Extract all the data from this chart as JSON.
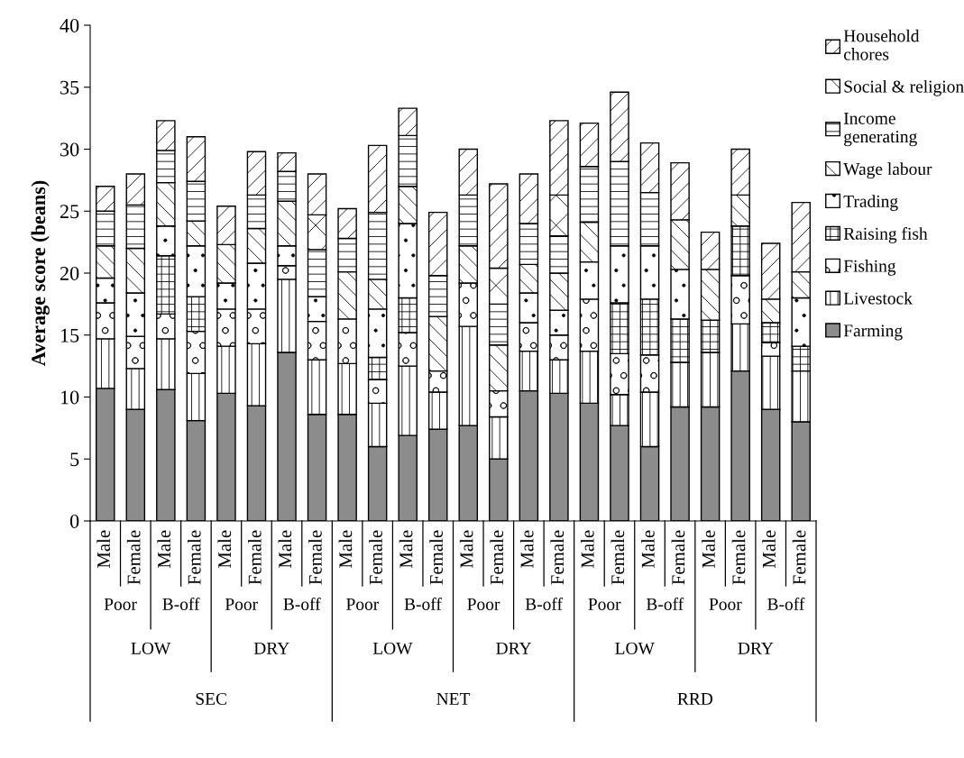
{
  "chart_data": {
    "type": "bar",
    "stacked": true,
    "ylabel": "Average score (beans)",
    "categories": [
      "Male",
      "Female",
      "Male",
      "Female",
      "Male",
      "Female",
      "Male",
      "Female",
      "Male",
      "Female",
      "Male",
      "Female",
      "Male",
      "Female",
      "Male",
      "Female",
      "Male",
      "Female",
      "Male",
      "Female",
      "Male",
      "Female",
      "Male",
      "Female"
    ],
    "annotations": [
      "Poor",
      "B-off",
      "Poor",
      "B-off",
      "Poor",
      "B-off",
      "Poor",
      "B-off",
      "Poor",
      "B-off",
      "Poor",
      "B-off",
      "LOW",
      "DRY",
      "LOW",
      "DRY",
      "LOW",
      "DRY",
      "SEC",
      "NET",
      "RRD"
    ],
    "ylim": [
      0,
      40
    ],
    "yticks": [
      0,
      5,
      10,
      15,
      20,
      25,
      30,
      35,
      40
    ],
    "grid": false,
    "legend": "top right",
    "series": [
      {
        "name": "Farming",
        "color": "#8c8c8c",
        "values": [
          10.7,
          9.0,
          10.6,
          8.1,
          10.3,
          9.3,
          13.6,
          8.6,
          8.6,
          6.0,
          6.9,
          7.4,
          7.7,
          5.0,
          10.5,
          10.3,
          9.5,
          7.7,
          6.0,
          9.2,
          9.2,
          12.1,
          9.0,
          8.0
        ]
      },
      {
        "name": "Livestock",
        "color": "#000000",
        "values": [
          4.0,
          3.3,
          4.1,
          3.8,
          3.8,
          5.0,
          5.9,
          4.4,
          4.1,
          3.5,
          5.6,
          3.0,
          8.0,
          3.4,
          3.2,
          2.7,
          4.2,
          2.5,
          4.4,
          3.6,
          4.4,
          3.8,
          4.3,
          4.1
        ]
      },
      {
        "name": "Fishing",
        "color": "#000000",
        "values": [
          2.9,
          2.6,
          2.0,
          3.4,
          3.0,
          2.8,
          1.1,
          3.1,
          3.6,
          1.9,
          2.7,
          1.7,
          3.5,
          2.1,
          2.3,
          2.0,
          4.2,
          3.3,
          3.0,
          null,
          null,
          3.9,
          1.1,
          null
        ]
      },
      {
        "name": "Raising fish",
        "color": "#000000",
        "values": [
          null,
          null,
          4.7,
          2.8,
          null,
          null,
          null,
          null,
          null,
          1.8,
          2.8,
          null,
          null,
          null,
          null,
          null,
          null,
          4.1,
          4.5,
          3.5,
          2.6,
          4.0,
          1.6,
          2.0
        ]
      },
      {
        "name": "Trading",
        "color": "#000000",
        "values": [
          2.0,
          3.5,
          2.4,
          4.1,
          2.1,
          3.7,
          1.6,
          2.0,
          null,
          3.9,
          6.0,
          null,
          null,
          null,
          2.4,
          2.0,
          3.0,
          4.6,
          4.3,
          4.0,
          null,
          null,
          null,
          3.9
        ]
      },
      {
        "name": "Wage labour",
        "color": "#000000",
        "values": [
          2.6,
          3.6,
          3.5,
          2.0,
          3.1,
          2.8,
          3.6,
          null,
          3.8,
          2.4,
          3.0,
          4.4,
          3.0,
          3.7,
          2.3,
          3.0,
          3.2,
          null,
          null,
          4.0,
          4.1,
          2.5,
          1.9,
          2.1
        ]
      },
      {
        "name": "Income\ngenerating",
        "color": "#000000",
        "values": [
          2.8,
          3.5,
          2.6,
          3.2,
          null,
          2.7,
          2.4,
          3.8,
          2.7,
          5.4,
          4.1,
          3.3,
          4.1,
          3.3,
          3.3,
          3.0,
          4.5,
          6.8,
          4.3,
          null,
          null,
          null,
          null,
          null
        ]
      },
      {
        "name": "Social & religion",
        "color": "#000000",
        "values": [
          null,
          null,
          null,
          null,
          null,
          null,
          null,
          2.8,
          null,
          null,
          null,
          null,
          null,
          2.9,
          null,
          3.3,
          null,
          null,
          null,
          null,
          null,
          null,
          null,
          null
        ]
      },
      {
        "name": "Household\nchores",
        "color": "#000000",
        "values": [
          2.0,
          2.5,
          2.4,
          3.6,
          3.1,
          3.5,
          1.5,
          3.3,
          2.4,
          5.4,
          2.2,
          5.1,
          3.7,
          6.8,
          4.0,
          6.0,
          3.5,
          5.6,
          4.0,
          4.6,
          3.0,
          3.7,
          4.5,
          5.6
        ]
      }
    ]
  }
}
